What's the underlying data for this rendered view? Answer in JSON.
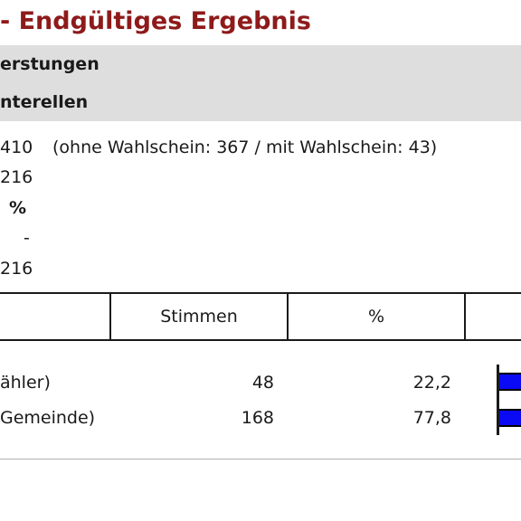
{
  "header": {
    "title": "- Endgültiges Ergebnis"
  },
  "sections": {
    "band1_label": "erstungen",
    "band2_label": "nterellen"
  },
  "stats": {
    "wahlberechtigte": "410",
    "wahlberechtigte_detail": "(ohne Wahlschein: 367 / mit Wahlschein: 43)",
    "waehler": "216",
    "beteiligung": "%",
    "ungueltig": "-",
    "gueltig": "216"
  },
  "table": {
    "headers": {
      "stimmen": "Stimmen",
      "prozent": "%"
    },
    "rows": [
      {
        "name": "ähler)",
        "stimmen": "48",
        "prozent": "22,2",
        "share": 22.2
      },
      {
        "name": "Gemeinde)",
        "stimmen": "168",
        "prozent": "77,8",
        "share": 77.8
      }
    ]
  },
  "colors": {
    "title": "#8e1a1a",
    "band": "#dedede",
    "bar": "#0a0af5"
  }
}
